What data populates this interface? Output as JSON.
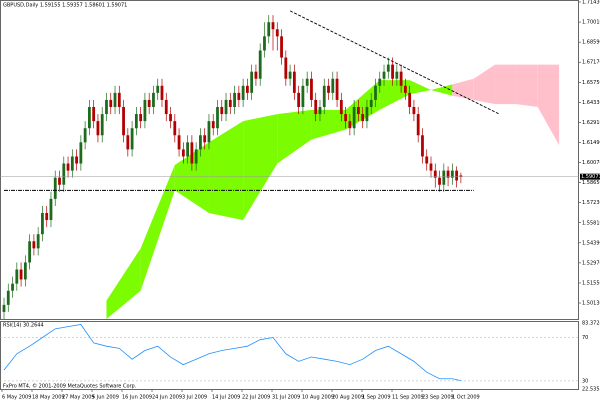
{
  "chart_data": {
    "type": "candlestick",
    "title": "GBPUSD,Daily 1.59155 1.59357 1.58601 1.59071",
    "bull_color": "#1e6b1e",
    "bear_color": "#b30000",
    "ylim": [
      1.49,
      1.715
    ],
    "yticks": [
      {
        "value": 1.7143,
        "label": "1.71430"
      },
      {
        "value": 1.7001,
        "label": "1.70010"
      },
      {
        "value": 1.6859,
        "label": "1.68590"
      },
      {
        "value": 1.6717,
        "label": "1.67170"
      },
      {
        "value": 1.6575,
        "label": "1.65750"
      },
      {
        "value": 1.6433,
        "label": "1.64330"
      },
      {
        "value": 1.6291,
        "label": "1.62910"
      },
      {
        "value": 1.6149,
        "label": "1.61490"
      },
      {
        "value": 1.6007,
        "label": "1.60070"
      },
      {
        "value": 1.5865,
        "label": "1.58650"
      },
      {
        "value": 1.5723,
        "label": "1.57230"
      },
      {
        "value": 1.5581,
        "label": "1.55810"
      },
      {
        "value": 1.5439,
        "label": "1.54390"
      },
      {
        "value": 1.5297,
        "label": "1.52970"
      },
      {
        "value": 1.5155,
        "label": "1.51550"
      },
      {
        "value": 1.5013,
        "label": "1.50130"
      }
    ],
    "dates": [
      "6 May 2009",
      "18 May 2009",
      "27 May 2009",
      "5 Jun 2009",
      "16 Jun 2009",
      "24 Jun 2009",
      "3 Jul 2009",
      "14 Jul 2009",
      "22 Jul 2009",
      "31 Jul 2009",
      "10 Aug 2009",
      "20 Aug 2009",
      "1 Sep 2009",
      "11 Sep 2009",
      "23 Sep 2009",
      "1 Oct 2009"
    ],
    "candles": [
      [
        1.495,
        1.505,
        1.49,
        1.5
      ],
      [
        1.5,
        1.515,
        1.495,
        1.51
      ],
      [
        1.51,
        1.52,
        1.505,
        1.515
      ],
      [
        1.515,
        1.53,
        1.51,
        1.525
      ],
      [
        1.525,
        1.53,
        1.513,
        1.518
      ],
      [
        1.518,
        1.535,
        1.513,
        1.53
      ],
      [
        1.53,
        1.55,
        1.525,
        1.545
      ],
      [
        1.545,
        1.55,
        1.535,
        1.54
      ],
      [
        1.54,
        1.555,
        1.535,
        1.55
      ],
      [
        1.55,
        1.57,
        1.545,
        1.565
      ],
      [
        1.565,
        1.57,
        1.555,
        1.56
      ],
      [
        1.56,
        1.58,
        1.555,
        1.575
      ],
      [
        1.575,
        1.595,
        1.57,
        1.59
      ],
      [
        1.59,
        1.595,
        1.58,
        1.585
      ],
      [
        1.585,
        1.605,
        1.58,
        1.6
      ],
      [
        1.6,
        1.605,
        1.59,
        1.595
      ],
      [
        1.595,
        1.61,
        1.59,
        1.605
      ],
      [
        1.605,
        1.61,
        1.595,
        1.6
      ],
      [
        1.6,
        1.62,
        1.595,
        1.615
      ],
      [
        1.615,
        1.63,
        1.61,
        1.625
      ],
      [
        1.625,
        1.645,
        1.62,
        1.64
      ],
      [
        1.64,
        1.645,
        1.625,
        1.63
      ],
      [
        1.63,
        1.635,
        1.615,
        1.62
      ],
      [
        1.62,
        1.64,
        1.615,
        1.635
      ],
      [
        1.635,
        1.65,
        1.63,
        1.645
      ],
      [
        1.645,
        1.65,
        1.635,
        1.64
      ],
      [
        1.64,
        1.655,
        1.635,
        1.65
      ],
      [
        1.65,
        1.655,
        1.635,
        1.64
      ],
      [
        1.64,
        1.645,
        1.615,
        1.62
      ],
      [
        1.62,
        1.625,
        1.605,
        1.61
      ],
      [
        1.61,
        1.63,
        1.605,
        1.625
      ],
      [
        1.625,
        1.64,
        1.62,
        1.635
      ],
      [
        1.635,
        1.64,
        1.625,
        1.63
      ],
      [
        1.63,
        1.65,
        1.625,
        1.645
      ],
      [
        1.645,
        1.65,
        1.635,
        1.64
      ],
      [
        1.64,
        1.655,
        1.635,
        1.65
      ],
      [
        1.65,
        1.66,
        1.645,
        1.655
      ],
      [
        1.655,
        1.66,
        1.64,
        1.645
      ],
      [
        1.645,
        1.65,
        1.63,
        1.635
      ],
      [
        1.635,
        1.64,
        1.625,
        1.63
      ],
      [
        1.63,
        1.635,
        1.615,
        1.62
      ],
      [
        1.62,
        1.625,
        1.605,
        1.61
      ],
      [
        1.61,
        1.615,
        1.6,
        1.605
      ],
      [
        1.605,
        1.62,
        1.6,
        1.615
      ],
      [
        1.615,
        1.62,
        1.595,
        1.6
      ],
      [
        1.6,
        1.615,
        1.595,
        1.61
      ],
      [
        1.61,
        1.625,
        1.605,
        1.62
      ],
      [
        1.62,
        1.625,
        1.61,
        1.615
      ],
      [
        1.615,
        1.635,
        1.61,
        1.63
      ],
      [
        1.63,
        1.635,
        1.62,
        1.625
      ],
      [
        1.625,
        1.645,
        1.62,
        1.64
      ],
      [
        1.64,
        1.645,
        1.63,
        1.635
      ],
      [
        1.635,
        1.65,
        1.63,
        1.645
      ],
      [
        1.645,
        1.65,
        1.635,
        1.64
      ],
      [
        1.64,
        1.655,
        1.635,
        1.65
      ],
      [
        1.65,
        1.655,
        1.64,
        1.645
      ],
      [
        1.645,
        1.66,
        1.64,
        1.655
      ],
      [
        1.655,
        1.66,
        1.645,
        1.65
      ],
      [
        1.65,
        1.67,
        1.645,
        1.665
      ],
      [
        1.665,
        1.67,
        1.655,
        1.66
      ],
      [
        1.66,
        1.685,
        1.655,
        1.68
      ],
      [
        1.68,
        1.7,
        1.675,
        1.69
      ],
      [
        1.69,
        1.705,
        1.685,
        1.7
      ],
      [
        1.7,
        1.705,
        1.68,
        1.695
      ],
      [
        1.695,
        1.7,
        1.68,
        1.69
      ],
      [
        1.69,
        1.695,
        1.67,
        1.675
      ],
      [
        1.675,
        1.68,
        1.655,
        1.66
      ],
      [
        1.66,
        1.67,
        1.655,
        1.665
      ],
      [
        1.665,
        1.67,
        1.645,
        1.65
      ],
      [
        1.65,
        1.655,
        1.635,
        1.64
      ],
      [
        1.64,
        1.66,
        1.635,
        1.655
      ],
      [
        1.655,
        1.665,
        1.65,
        1.66
      ],
      [
        1.66,
        1.665,
        1.64,
        1.645
      ],
      [
        1.645,
        1.65,
        1.63,
        1.635
      ],
      [
        1.635,
        1.645,
        1.63,
        1.64
      ],
      [
        1.64,
        1.66,
        1.635,
        1.655
      ],
      [
        1.655,
        1.66,
        1.645,
        1.65
      ],
      [
        1.65,
        1.665,
        1.645,
        1.66
      ],
      [
        1.66,
        1.665,
        1.64,
        1.645
      ],
      [
        1.645,
        1.65,
        1.63,
        1.635
      ],
      [
        1.635,
        1.64,
        1.625,
        1.63
      ],
      [
        1.63,
        1.635,
        1.62,
        1.625
      ],
      [
        1.625,
        1.645,
        1.62,
        1.64
      ],
      [
        1.64,
        1.645,
        1.63,
        1.635
      ],
      [
        1.635,
        1.64,
        1.625,
        1.63
      ],
      [
        1.63,
        1.645,
        1.625,
        1.64
      ],
      [
        1.64,
        1.65,
        1.635,
        1.645
      ],
      [
        1.645,
        1.66,
        1.64,
        1.655
      ],
      [
        1.655,
        1.665,
        1.65,
        1.66
      ],
      [
        1.66,
        1.67,
        1.655,
        1.665
      ],
      [
        1.665,
        1.675,
        1.66,
        1.67
      ],
      [
        1.67,
        1.675,
        1.655,
        1.66
      ],
      [
        1.66,
        1.67,
        1.655,
        1.665
      ],
      [
        1.665,
        1.67,
        1.65,
        1.655
      ],
      [
        1.655,
        1.66,
        1.645,
        1.65
      ],
      [
        1.65,
        1.655,
        1.635,
        1.64
      ],
      [
        1.64,
        1.645,
        1.63,
        1.635
      ],
      [
        1.635,
        1.64,
        1.615,
        1.62
      ],
      [
        1.62,
        1.625,
        1.6,
        1.605
      ],
      [
        1.605,
        1.61,
        1.595,
        1.6
      ],
      [
        1.6,
        1.605,
        1.59,
        1.595
      ],
      [
        1.595,
        1.6,
        1.583,
        1.59
      ],
      [
        1.59,
        1.595,
        1.58,
        1.585
      ],
      [
        1.585,
        1.6,
        1.58,
        1.595
      ],
      [
        1.595,
        1.598,
        1.584,
        1.59
      ],
      [
        1.59,
        1.6,
        1.585,
        1.595
      ],
      [
        1.595,
        1.598,
        1.583,
        1.588
      ],
      [
        1.59155,
        1.59357,
        1.58601,
        1.59071
      ]
    ],
    "cloud": {
      "x": [
        24,
        32,
        40,
        48,
        56,
        64,
        72,
        80,
        88,
        95,
        100,
        105,
        110,
        115,
        120,
        125,
        130
      ],
      "span_a": [
        1.503,
        1.54,
        1.599,
        1.615,
        1.63,
        1.635,
        1.638,
        1.638,
        1.659,
        1.659,
        1.652,
        1.648,
        1.645,
        1.642,
        1.642,
        1.64,
        1.613
      ],
      "span_b": [
        1.49,
        1.51,
        1.581,
        1.565,
        1.56,
        1.6,
        1.617,
        1.624,
        1.638,
        1.649,
        1.652,
        1.656,
        1.66,
        1.67,
        1.67,
        1.67,
        1.67
      ],
      "up_color": "#7cfc00",
      "down_color": "#ffc0cb"
    },
    "trendlines": [
      {
        "x": [
          67,
          116
        ],
        "y": [
          1.708,
          1.635
        ],
        "color": "#000000"
      },
      {
        "x": [
          0,
          110
        ],
        "y": [
          1.581,
          1.581
        ],
        "color": "#000000"
      }
    ],
    "copyright": "FxPro MT4, © 2001-2009 MetaQuotes Software Corp.",
    "rsi": {
      "title": "RSI(14) 30.2644",
      "color": "#1e90ff",
      "ylim": [
        22.5353,
        83.3724
      ],
      "yticks": [
        70,
        30
      ],
      "x": [
        0,
        3,
        6,
        9,
        12,
        15,
        18,
        21,
        24,
        27,
        30,
        33,
        36,
        39,
        42,
        45,
        48,
        51,
        54,
        57,
        60,
        63,
        66,
        69,
        72,
        75,
        78,
        81,
        84,
        87,
        90,
        93,
        96,
        99,
        102,
        105,
        107
      ],
      "values": [
        40,
        55,
        62,
        70,
        78,
        80,
        82,
        65,
        62,
        60,
        50,
        58,
        62,
        52,
        45,
        50,
        55,
        58,
        60,
        62,
        68,
        70,
        55,
        48,
        52,
        50,
        48,
        45,
        50,
        58,
        62,
        55,
        48,
        38,
        32,
        32,
        30.2644
      ]
    }
  }
}
